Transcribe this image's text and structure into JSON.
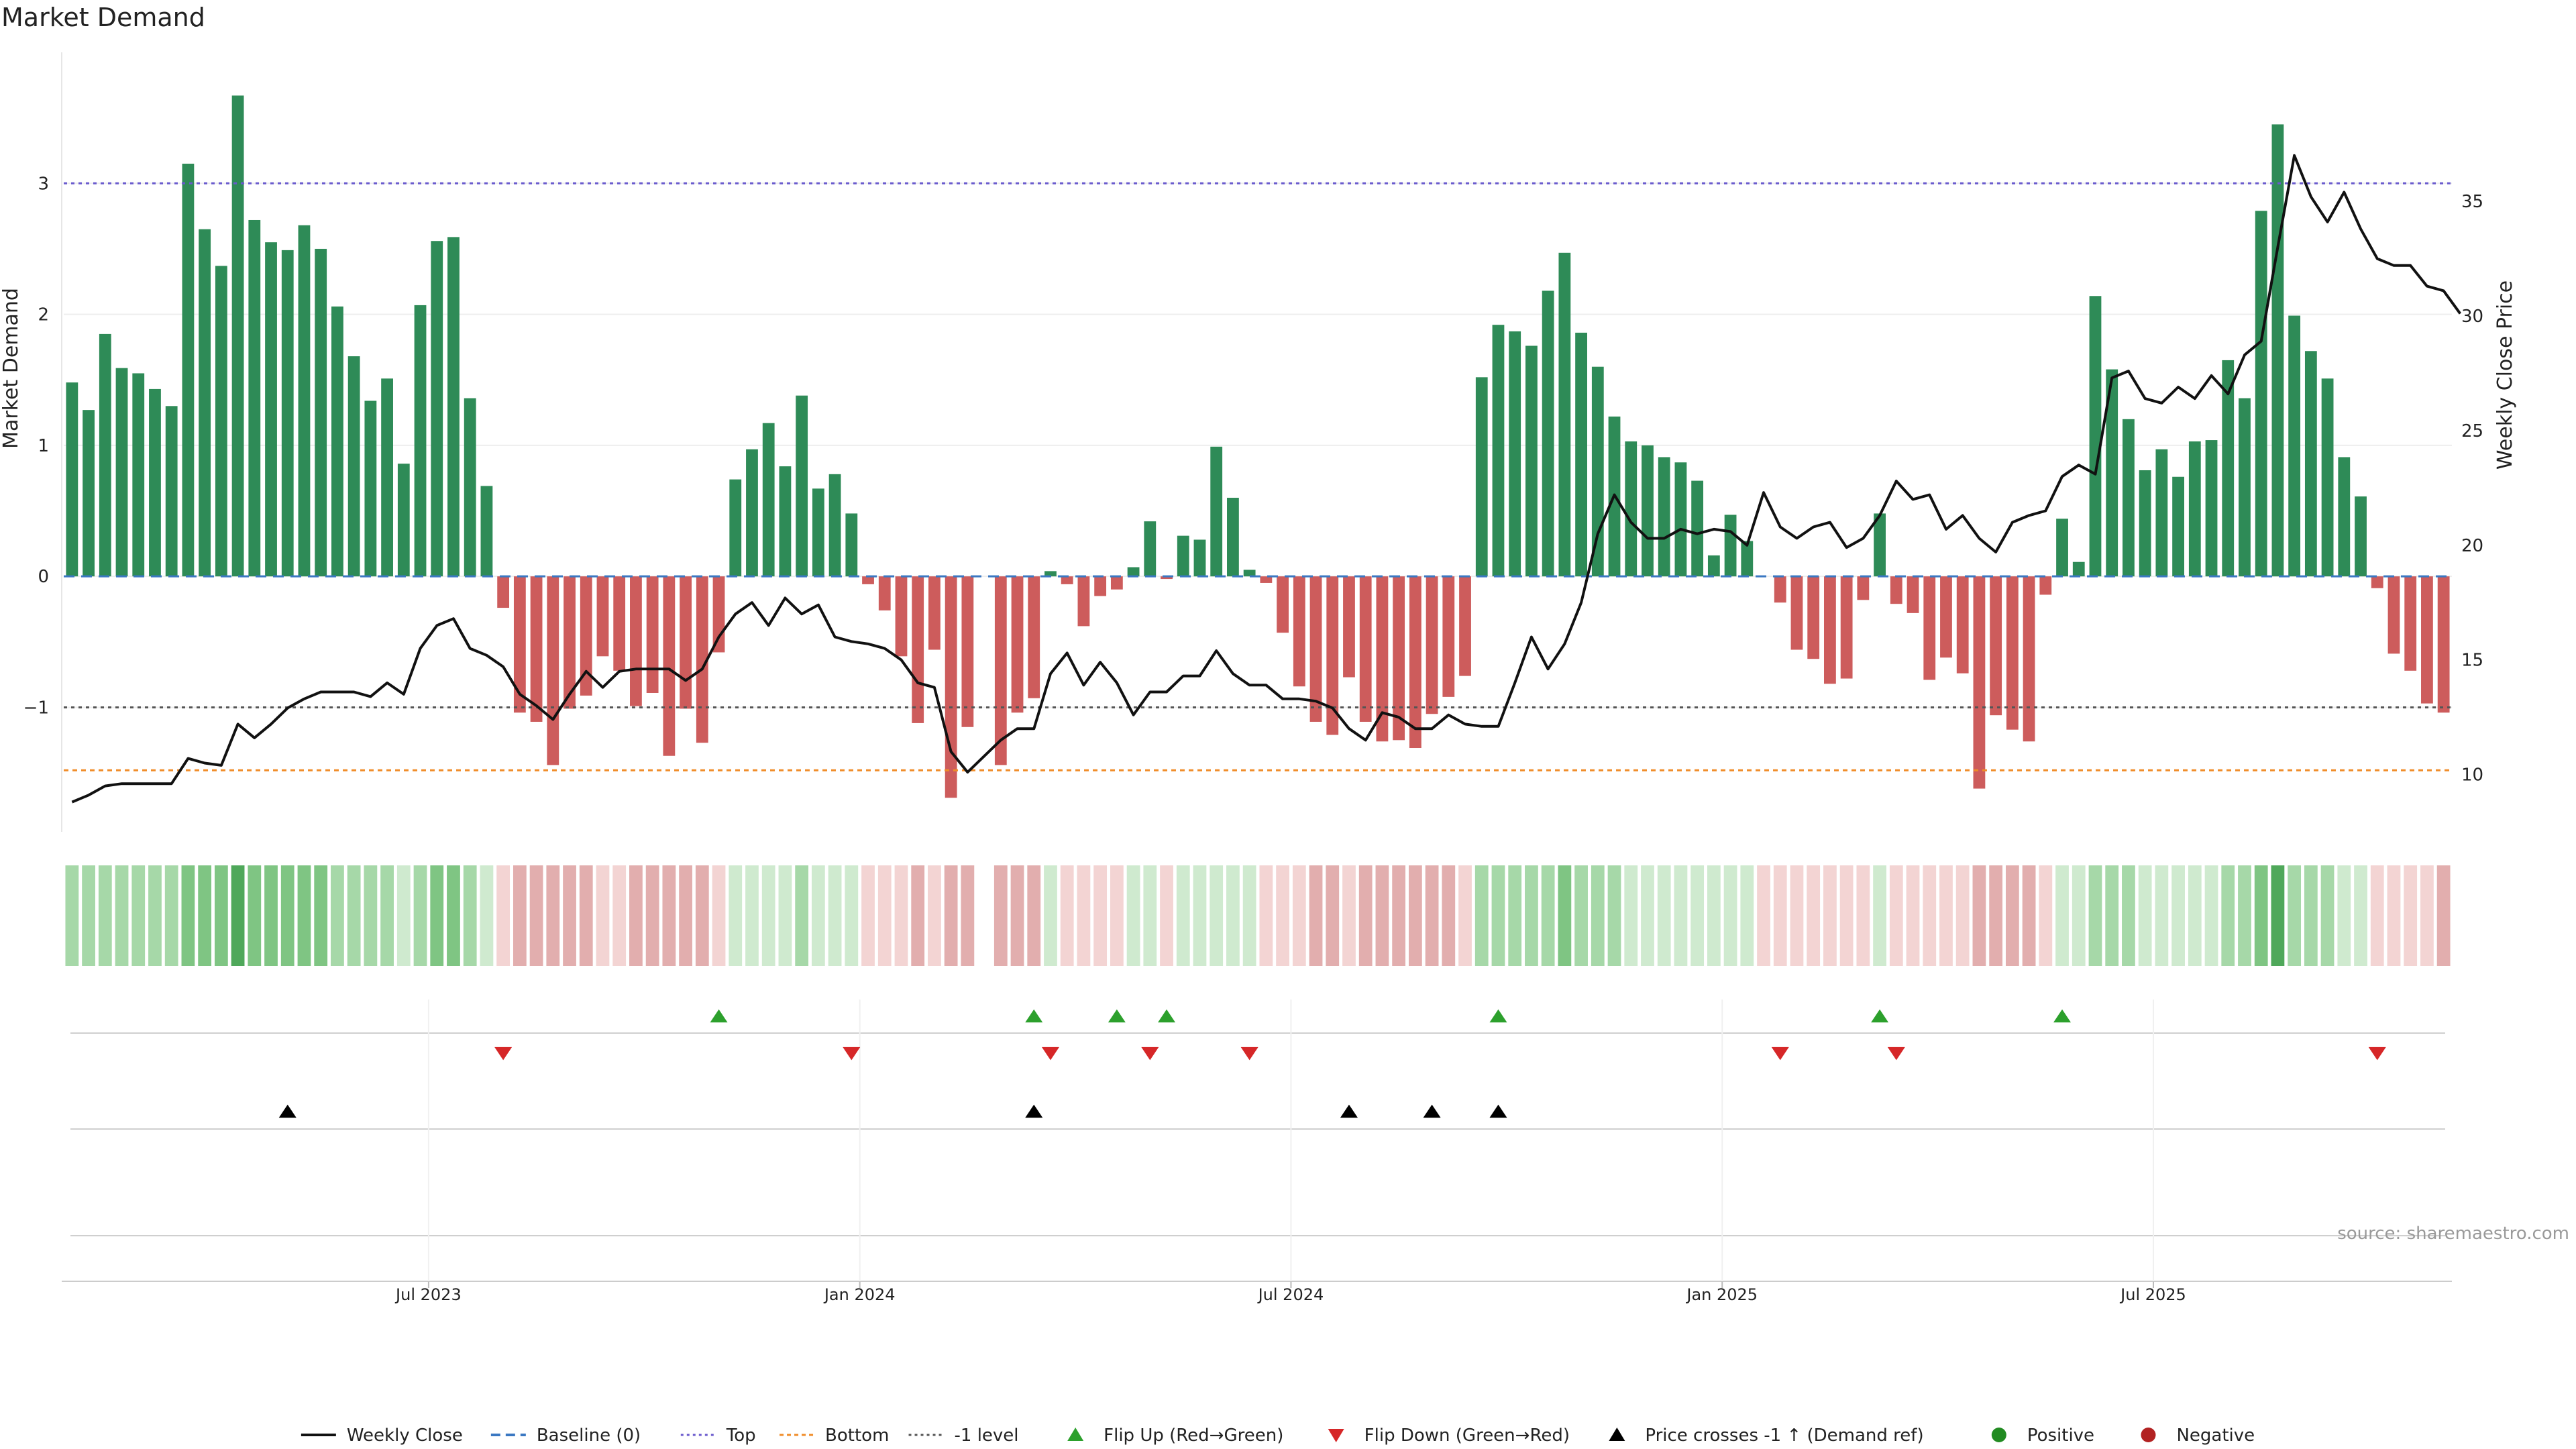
{
  "chart_data": {
    "type": "bar",
    "title": "Market Demand",
    "ylabel_left": "Market Demand",
    "ylabel_right": "Weekly Close Price",
    "xlabel": "",
    "y_ticks_left": [
      -1,
      0,
      1,
      2,
      3
    ],
    "y_tick_labels_left": [
      "−1",
      "0",
      "1",
      "2",
      "3"
    ],
    "ylim_left": [
      -1.95,
      4.0
    ],
    "y_ticks_right": [
      10,
      15,
      20,
      25,
      30,
      35
    ],
    "y_tick_labels_right": [
      "10",
      "15",
      "20",
      "25",
      "30",
      "35"
    ],
    "ylim_right": [
      7.5,
      41.5
    ],
    "x_tick_weeks": [
      22,
      48,
      74,
      100,
      126
    ],
    "x_tick_labels": [
      "Jul 2023",
      "Jan 2024",
      "Jul 2024",
      "Jan 2025",
      "Jul 2025"
    ],
    "reference_lines": {
      "top": 3.0,
      "bottom": -1.48,
      "minus_one": -1.0,
      "baseline": 0
    },
    "demand": [
      1.48,
      1.27,
      1.85,
      1.59,
      1.55,
      1.43,
      1.3,
      3.15,
      2.65,
      2.37,
      3.67,
      2.72,
      2.55,
      2.49,
      2.68,
      2.5,
      2.06,
      1.68,
      1.34,
      1.51,
      0.86,
      2.07,
      2.56,
      2.59,
      1.36,
      0.69,
      -0.24,
      -1.04,
      -1.11,
      -1.44,
      -1.01,
      -0.91,
      -0.61,
      -0.72,
      -0.99,
      -0.89,
      -1.37,
      -1.01,
      -1.27,
      -0.58,
      0.74,
      0.97,
      1.17,
      0.84,
      1.38,
      0.67,
      0.78,
      0.48,
      -0.06,
      -0.26,
      -0.61,
      -1.12,
      -0.56,
      -1.69,
      -1.15,
      0,
      -1.44,
      -1.04,
      -0.93,
      0.04,
      -0.06,
      -0.38,
      -0.15,
      -0.1,
      0.07,
      0.42,
      -0.02,
      0.31,
      0.28,
      0.99,
      0.6,
      0.05,
      -0.05,
      -0.43,
      -0.84,
      -1.11,
      -1.21,
      -0.77,
      -1.11,
      -1.26,
      -1.25,
      -1.31,
      -1.05,
      -0.92,
      -0.76,
      1.52,
      1.92,
      1.87,
      1.76,
      2.18,
      2.47,
      1.86,
      1.6,
      1.22,
      1.03,
      1.0,
      0.91,
      0.87,
      0.73,
      0.16,
      0.47,
      0.27,
      0,
      -0.2,
      -0.56,
      -0.63,
      -0.82,
      -0.78,
      -0.18,
      0.48,
      -0.21,
      -0.28,
      -0.79,
      -0.62,
      -0.74,
      -1.62,
      -1.06,
      -1.17,
      -1.26,
      -0.14,
      0.44,
      0.11,
      2.14,
      1.58,
      1.2,
      0.81,
      0.97,
      0.76,
      1.03,
      1.04,
      1.65,
      1.36,
      2.79,
      3.45,
      1.99,
      1.72,
      1.51,
      0.91,
      0.61,
      -0.09,
      -0.59,
      -0.72,
      -0.97,
      -1.04
    ],
    "weekly_close": [
      8.8,
      9.1,
      9.5,
      9.6,
      9.6,
      9.6,
      9.6,
      10.7,
      10.5,
      10.4,
      12.2,
      11.6,
      12.2,
      12.9,
      13.3,
      13.6,
      13.6,
      13.6,
      13.4,
      14.0,
      13.5,
      15.5,
      16.5,
      16.8,
      15.5,
      15.2,
      14.7,
      13.5,
      13.0,
      12.4,
      13.5,
      14.5,
      13.8,
      14.5,
      14.6,
      14.6,
      14.6,
      14.1,
      14.6,
      16.0,
      17.0,
      17.5,
      16.5,
      17.7,
      17.0,
      17.4,
      16.0,
      15.8,
      15.7,
      15.5,
      15.0,
      14.0,
      13.8,
      11.0,
      10.1,
      10.8,
      11.5,
      12.0,
      12.0,
      14.4,
      15.3,
      13.9,
      14.9,
      14.0,
      12.6,
      13.6,
      13.6,
      14.3,
      14.3,
      15.4,
      14.4,
      13.9,
      13.9,
      13.3,
      13.3,
      13.2,
      12.9,
      12.0,
      11.5,
      12.7,
      12.5,
      12.0,
      12.0,
      12.6,
      12.2,
      12.1,
      12.1,
      14.0,
      16.0,
      14.6,
      15.7,
      17.5,
      20.5,
      22.2,
      21.0,
      20.3,
      20.3,
      20.7,
      20.5,
      20.7,
      20.6,
      20.0,
      22.3,
      20.8,
      20.3,
      20.8,
      21.0,
      19.9,
      20.3,
      21.3,
      22.8,
      22.0,
      22.2,
      20.7,
      21.3,
      20.3,
      19.7,
      21.0,
      21.3,
      21.5,
      23.0,
      23.5,
      23.1,
      27.3,
      27.6,
      26.4,
      26.2,
      26.9,
      26.4,
      27.4,
      26.6,
      28.3,
      28.9,
      33.0,
      37.0,
      35.2,
      34.1,
      35.4,
      33.8,
      32.5,
      32.2,
      32.2,
      31.3,
      31.1,
      30.1
    ],
    "strip": [
      2,
      2,
      2,
      2,
      2,
      2,
      2,
      3,
      3,
      3,
      4,
      3,
      3,
      3,
      3,
      3,
      2,
      2,
      2,
      2,
      1,
      2,
      3,
      3,
      2,
      1,
      -1,
      -2,
      -2,
      -2,
      -2,
      -2,
      -1,
      -1,
      -2,
      -2,
      -2,
      -2,
      -2,
      -1,
      1,
      1,
      1,
      1,
      2,
      1,
      1,
      1,
      -1,
      -1,
      -1,
      -2,
      -1,
      -2,
      -2,
      null,
      -2,
      -2,
      -2,
      1,
      -1,
      -1,
      -1,
      -1,
      1,
      1,
      -1,
      1,
      1,
      1,
      1,
      1,
      -1,
      -1,
      -1,
      -2,
      -2,
      -1,
      -2,
      -2,
      -2,
      -2,
      -2,
      -2,
      -1,
      2,
      2,
      2,
      2,
      2,
      3,
      2,
      2,
      2,
      1,
      1,
      1,
      1,
      1,
      1,
      1,
      1,
      -1,
      -1,
      -1,
      -1,
      -1,
      -1,
      -1,
      1,
      -1,
      -1,
      -1,
      -1,
      -1,
      -2,
      -2,
      -2,
      -2,
      -1,
      1,
      1,
      2,
      2,
      2,
      1,
      1,
      1,
      1,
      1,
      2,
      2,
      3,
      4,
      2,
      2,
      2,
      1,
      1,
      -1,
      -1,
      -1,
      -1,
      -2
    ],
    "flip_up_weeks": [
      39,
      58,
      63,
      66,
      86,
      109,
      120
    ],
    "flip_down_weeks": [
      26,
      47,
      59,
      65,
      71,
      103,
      110,
      139
    ],
    "price_cross_weeks": [
      13,
      58,
      77,
      82,
      86
    ],
    "source": "source: sharemaestro.com",
    "legend": [
      {
        "key": "weekly-close",
        "label": "Weekly Close"
      },
      {
        "key": "baseline",
        "label": "Baseline (0)"
      },
      {
        "key": "top",
        "label": "Top"
      },
      {
        "key": "bottom",
        "label": "Bottom"
      },
      {
        "key": "minus-one",
        "label": "-1 level"
      },
      {
        "key": "flip-up",
        "label": "Flip Up (Red→Green)"
      },
      {
        "key": "flip-down",
        "label": "Flip Down (Green→Red)"
      },
      {
        "key": "price-cross",
        "label": "Price crosses -1 ↑ (Demand ref)"
      },
      {
        "key": "positive",
        "label": "Positive"
      },
      {
        "key": "negative",
        "label": "Negative"
      }
    ]
  },
  "colors": {
    "positive_bar": "#2e8b57",
    "negative_bar": "#cd5c5c",
    "price_line": "#111111",
    "baseline": "#3b78c2",
    "top_line": "#6a5acd",
    "bottom_line": "#f08c28",
    "minus_one_line": "#555555",
    "flip_up": "#2ca02c",
    "flip_down": "#d62728",
    "price_cross": "#000000",
    "positive_dot": "#228b22",
    "negative_dot": "#b22222",
    "strip_positive": [
      "#cfeacf",
      "#a6d8a8",
      "#7fc583",
      "#4fa85a"
    ],
    "strip_negative": [
      "#f3d4d3",
      "#e2aeae"
    ],
    "grid": "#eeeeee",
    "source_text": "#999999"
  }
}
